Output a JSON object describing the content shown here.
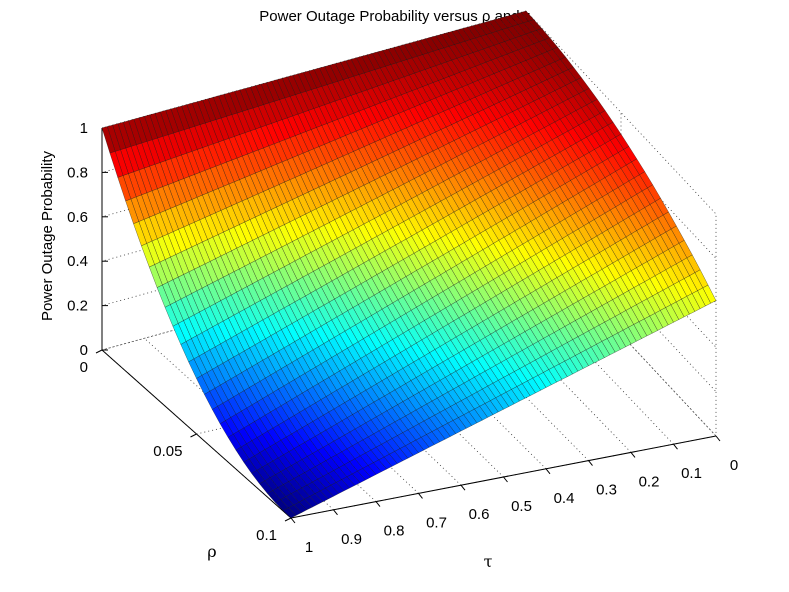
{
  "chart_data": {
    "type": "surface",
    "title": "Power Outage Probability versus ρ and τ",
    "xlabel": "τ",
    "ylabel": "ρ",
    "zlabel": "Power Outage Probability",
    "xlim": [
      0,
      1
    ],
    "ylim": [
      0,
      0.1
    ],
    "zlim": [
      0,
      1
    ],
    "x_ticks": [
      "0",
      "0.1",
      "0.2",
      "0.3",
      "0.4",
      "0.5",
      "0.6",
      "0.7",
      "0.8",
      "0.9",
      "1"
    ],
    "y_ticks": [
      "0",
      "0.05",
      "0.1"
    ],
    "z_ticks": [
      "0",
      "0.2",
      "0.4",
      "0.6",
      "0.8",
      "1"
    ],
    "colormap": "jet",
    "grid": true,
    "samples": [
      {
        "tau": 1,
        "rho": 0.1,
        "p": 0.0
      },
      {
        "tau": 1,
        "rho": 0,
        "p": 1.0
      },
      {
        "tau": 0,
        "rho": 0,
        "p": 1.0
      },
      {
        "tau": 0,
        "rho": 0.1,
        "p": 0.61
      }
    ]
  }
}
